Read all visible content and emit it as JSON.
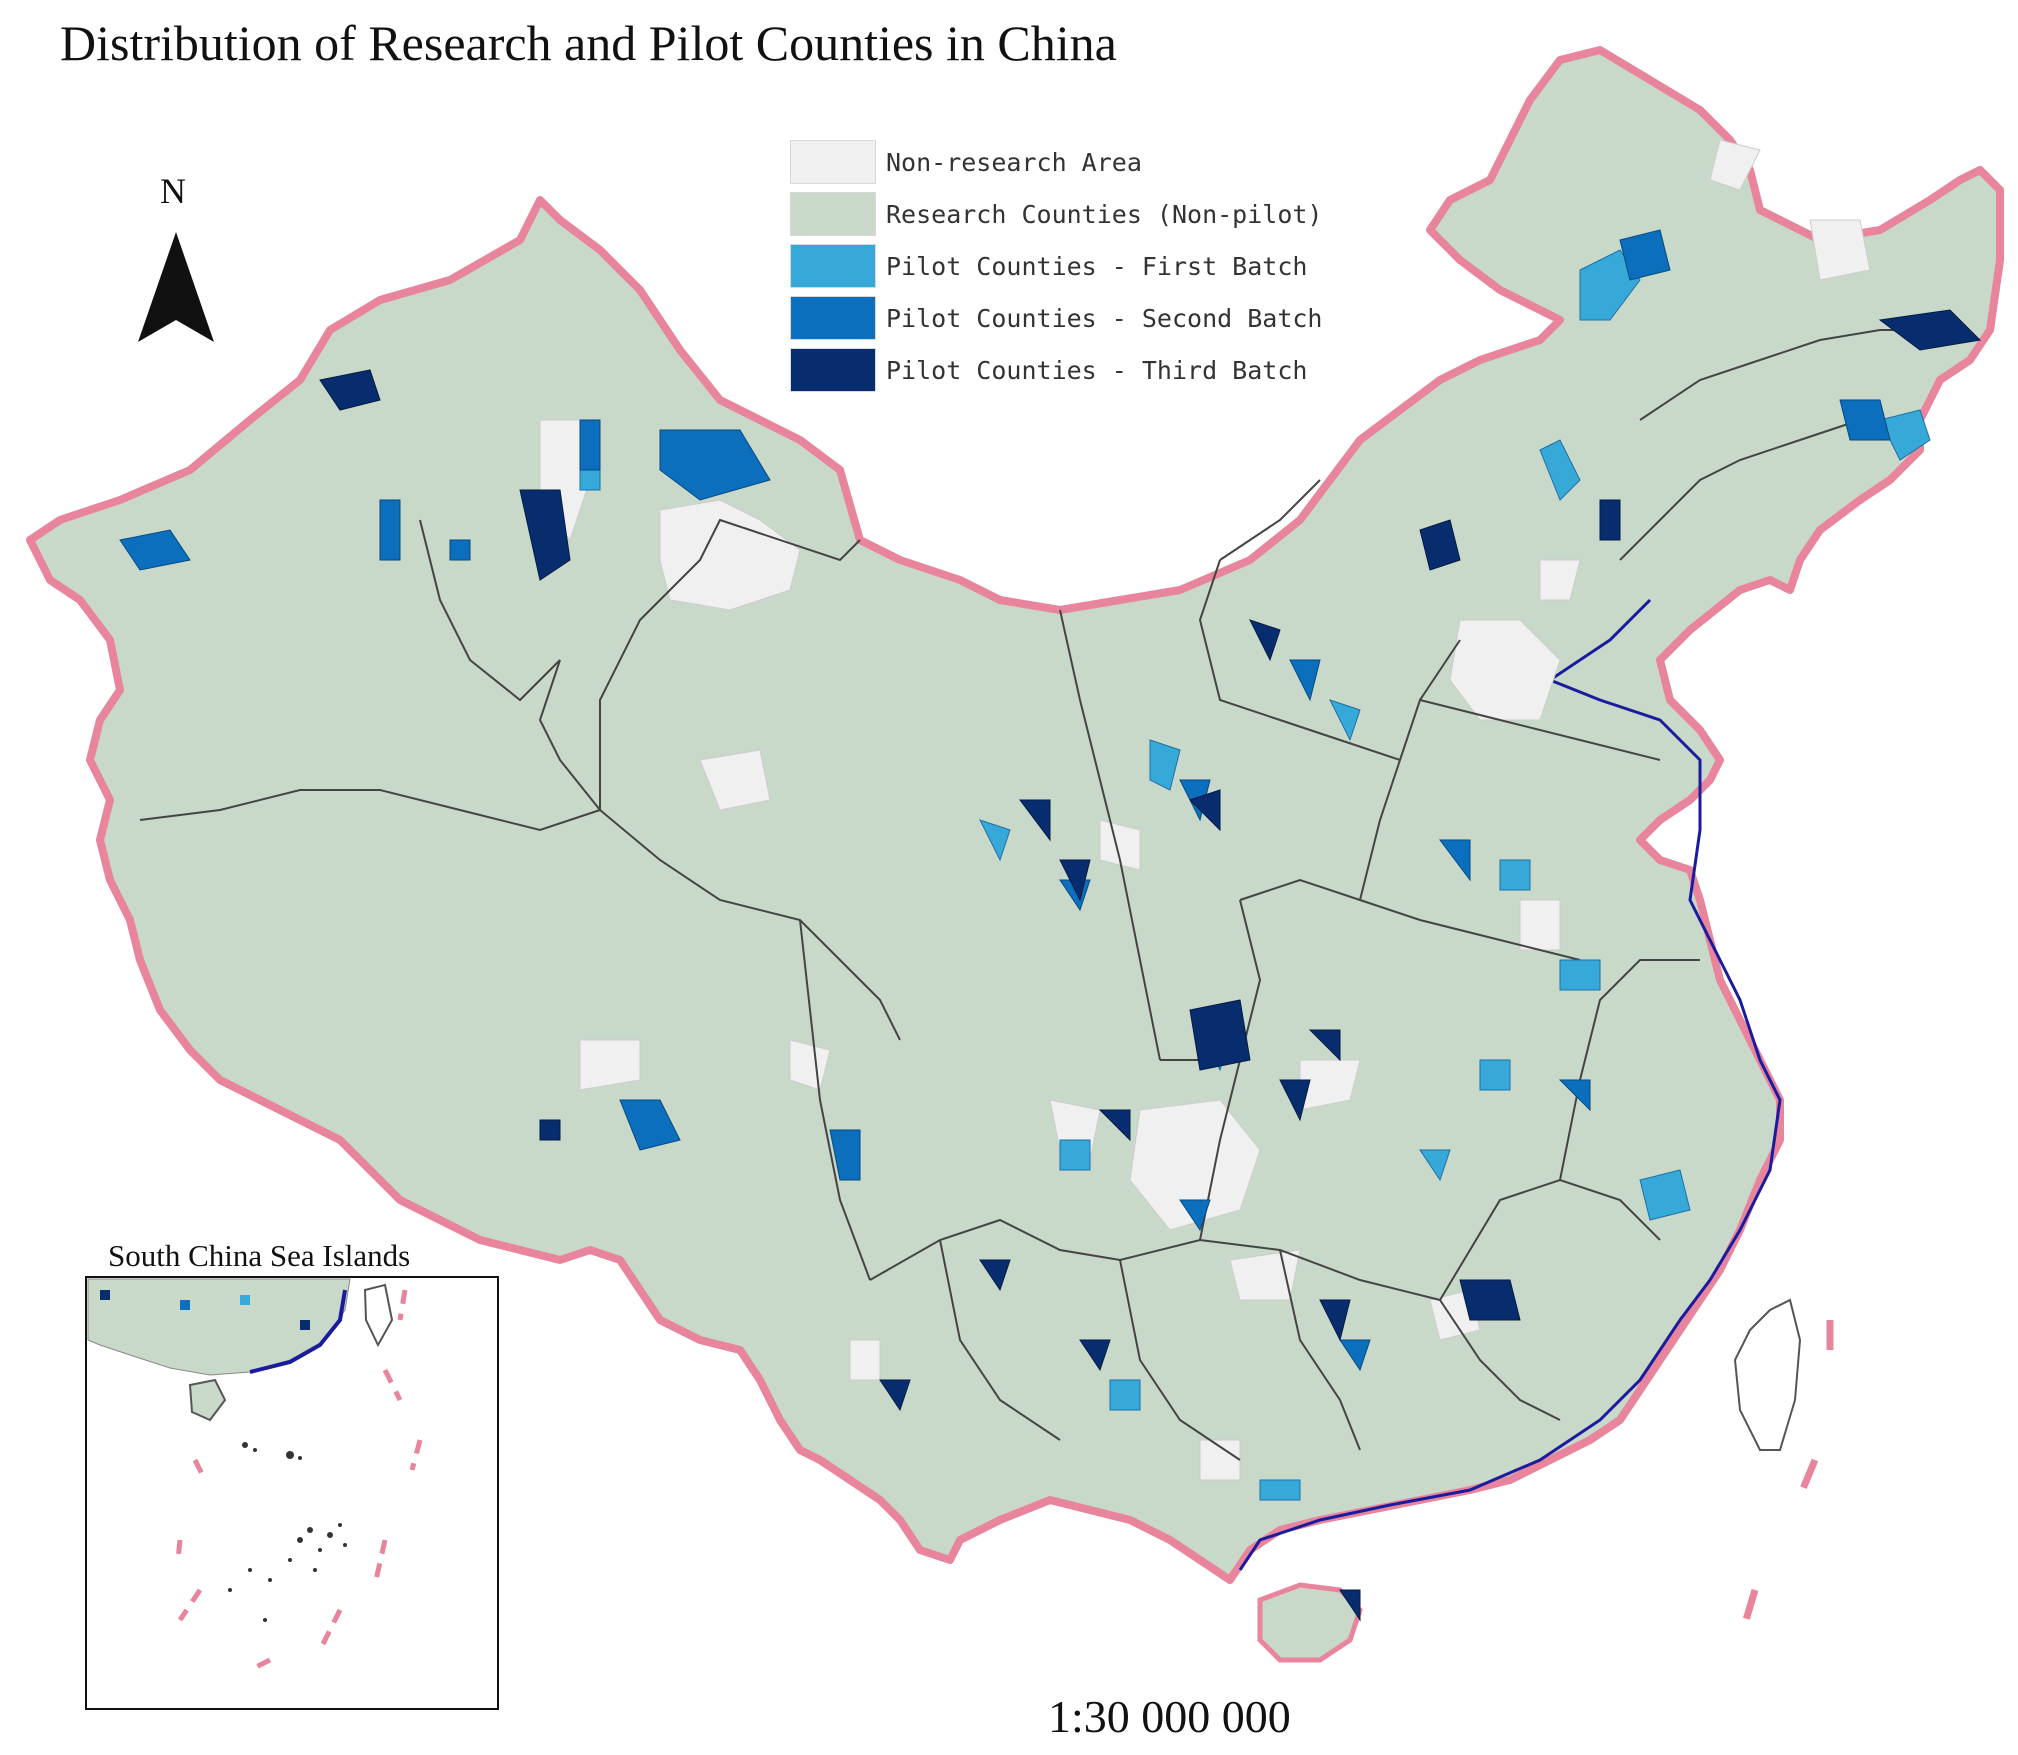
{
  "title": "Distribution of Research and Pilot Counties in China",
  "north_label": "N",
  "legend": [
    {
      "label": "Non-research Area",
      "color": "#f0f0f0"
    },
    {
      "label": "Research Counties (Non-pilot)",
      "color": "#c9d9c9"
    },
    {
      "label": "Pilot Counties - First Batch",
      "color": "#36a9d8"
    },
    {
      "label": "Pilot Counties - Second Batch",
      "color": "#0b6fbd"
    },
    {
      "label": "Pilot Counties - Third Batch",
      "color": "#082d6e"
    }
  ],
  "inset_title": "South China Sea Islands",
  "scale_text": "1:30 000 000",
  "colors": {
    "border": "#e8849c",
    "coast": "#1b1b9e",
    "province_line": "#444444",
    "county_line": "#9aa89a"
  }
}
